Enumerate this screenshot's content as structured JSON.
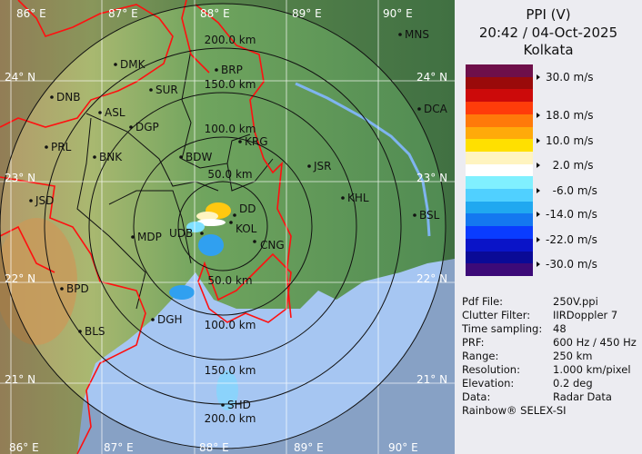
{
  "header": {
    "product": "PPI (V)",
    "datetime": "20:42 / 04-Oct-2025",
    "site": "Kolkata"
  },
  "legend": {
    "colors": [
      "#6e0f4a",
      "#9a0a0a",
      "#cc0a0a",
      "#ff3c0a",
      "#ff7a0a",
      "#ffaa0a",
      "#ffe000",
      "#fff4c0",
      "#ffffff",
      "#80f0ff",
      "#50d0ff",
      "#20a8f0",
      "#1478f0",
      "#0a3cff",
      "#0a14c8",
      "#0a0a96",
      "#3c0a78"
    ],
    "ticks": [
      "30.0 m/s",
      "18.0 m/s",
      "10.0 m/s",
      "  2.0 m/s",
      "  -6.0 m/s",
      "-14.0 m/s",
      "-22.0 m/s",
      "-30.0 m/s"
    ]
  },
  "info": [
    {
      "key": "Pdf File:",
      "value": "250V.ppi"
    },
    {
      "key": "Clutter Filter:",
      "value": "IIRDoppler 7"
    },
    {
      "key": "Time sampling:",
      "value": "48"
    },
    {
      "key": "PRF:",
      "value": "600 Hz / 450 Hz"
    },
    {
      "key": "Range:",
      "value": "250 km"
    },
    {
      "key": "Resolution:",
      "value": "1.000 km/pixel"
    },
    {
      "key": "Elevation:",
      "value": "0.2 deg"
    },
    {
      "key": "Data:",
      "value": "Radar Data"
    }
  ],
  "credit": "Rainbow® SELEX-SI",
  "map": {
    "lon_labels": [
      "86° E",
      "87° E",
      "88° E",
      "89° E",
      "90° E"
    ],
    "lat_labels": [
      "24° N",
      "23° N",
      "22° N",
      "21° N"
    ],
    "range_labels": [
      "50.0 km",
      "100.0 km",
      "150.0 km",
      "200.0 km",
      "50.0 km",
      "100.0 km",
      "150.0 km",
      "200.0 km"
    ],
    "stations": [
      "MNS",
      "DMK",
      "BRP",
      "SUR",
      "DNB",
      "ASL",
      "DGP",
      "DCA",
      "KRG",
      "PRL",
      "BNK",
      "BDW",
      "JSR",
      "KHL",
      "JSD",
      "BSL",
      "DD",
      "KOL",
      "UDB",
      "CNG",
      "MDP",
      "BPD",
      "BLS",
      "DGH",
      "SHD"
    ],
    "colors": {
      "land": "#5f9a5a",
      "sea": "#a6c6f2",
      "border": "#ff1010",
      "rings": "#111111"
    }
  }
}
